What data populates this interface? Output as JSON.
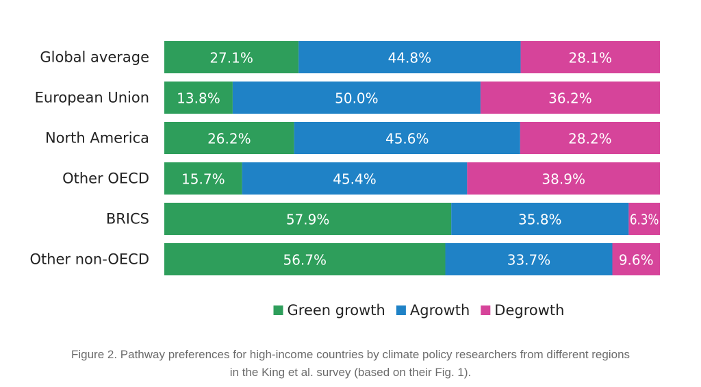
{
  "chart_data": {
    "type": "bar",
    "orientation": "horizontal",
    "stacked": true,
    "percent_stacked": true,
    "categories": [
      "Global average",
      "European Union",
      "North America",
      "Other OECD",
      "BRICS",
      "Other non-OECD"
    ],
    "series": [
      {
        "name": "Green growth",
        "color": "#2e9e5b",
        "values": [
          27.1,
          13.8,
          26.2,
          15.7,
          57.9,
          56.7
        ],
        "labels": [
          "27.1%",
          "13.8%",
          "26.2%",
          "15.7%",
          "57.9%",
          "56.7%"
        ]
      },
      {
        "name": "Agrowth",
        "color": "#1f82c6",
        "values": [
          44.8,
          50.0,
          45.6,
          45.4,
          35.8,
          33.7
        ],
        "labels": [
          "44.8%",
          "50.0%",
          "45.6%",
          "45.4%",
          "35.8%",
          "33.7%"
        ]
      },
      {
        "name": "Degrowth",
        "color": "#d6449a",
        "values": [
          28.1,
          36.2,
          28.2,
          38.9,
          6.3,
          9.6
        ],
        "labels": [
          "28.1%",
          "36.2%",
          "28.2%",
          "38.9%",
          "6.3%",
          "9.6%"
        ]
      }
    ],
    "xlim": [
      0,
      100
    ],
    "grid": false,
    "legend_position": "bottom"
  },
  "caption": {
    "line1": "Figure 2. Pathway preferences for high-income countries by climate policy researchers from different regions",
    "line2": "in the King et al. survey (based on their Fig. 1)."
  }
}
